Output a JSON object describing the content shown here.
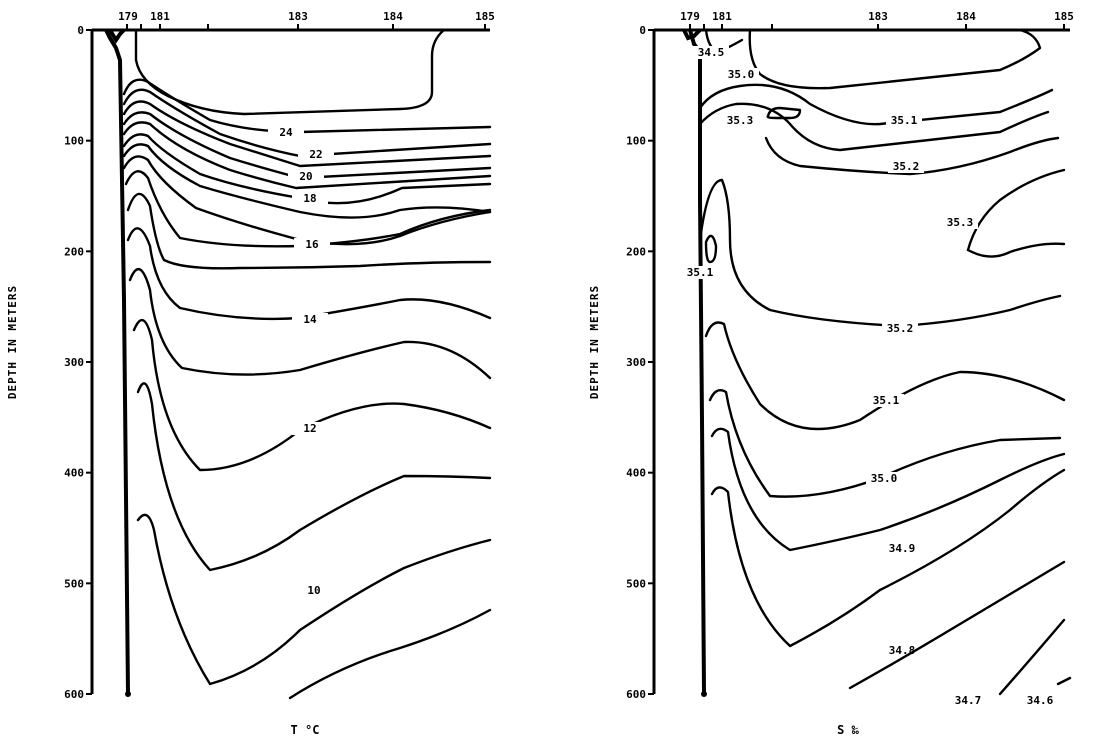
{
  "chart_data": [
    {
      "type": "contour",
      "panel": "left",
      "ylabel": "DEPTH IN METERS",
      "xlabel": "T °C",
      "y_ticks": [
        "0",
        "100",
        "200",
        "300",
        "400",
        "500",
        "600"
      ],
      "ylim": [
        0,
        600
      ],
      "stations": [
        "179",
        "181",
        "183",
        "184",
        "185"
      ],
      "contour_labels": [
        "24",
        "22",
        "20",
        "18",
        "16",
        "14",
        "12",
        "10"
      ],
      "contour_values": [
        24,
        22,
        20,
        18,
        16,
        14,
        12,
        10
      ]
    },
    {
      "type": "contour",
      "panel": "right",
      "ylabel": "DEPTH IN METERS",
      "xlabel": "S ‰",
      "y_ticks": [
        "0",
        "100",
        "200",
        "300",
        "400",
        "500",
        "600"
      ],
      "ylim": [
        0,
        600
      ],
      "stations": [
        "179",
        "181",
        "183",
        "184",
        "185"
      ],
      "contour_labels": [
        "34.5",
        "35.0",
        "35.3",
        "35.1",
        "35.2",
        "35.3",
        "35.1",
        "35.2",
        "35.1",
        "35.0",
        "34.9",
        "34.8",
        "34.7",
        "34.6"
      ],
      "contour_values": [
        34.5,
        35.0,
        35.3,
        35.1,
        35.2,
        35.3,
        35.1,
        35.2,
        35.1,
        35.0,
        34.9,
        34.8,
        34.7,
        34.6
      ]
    }
  ]
}
